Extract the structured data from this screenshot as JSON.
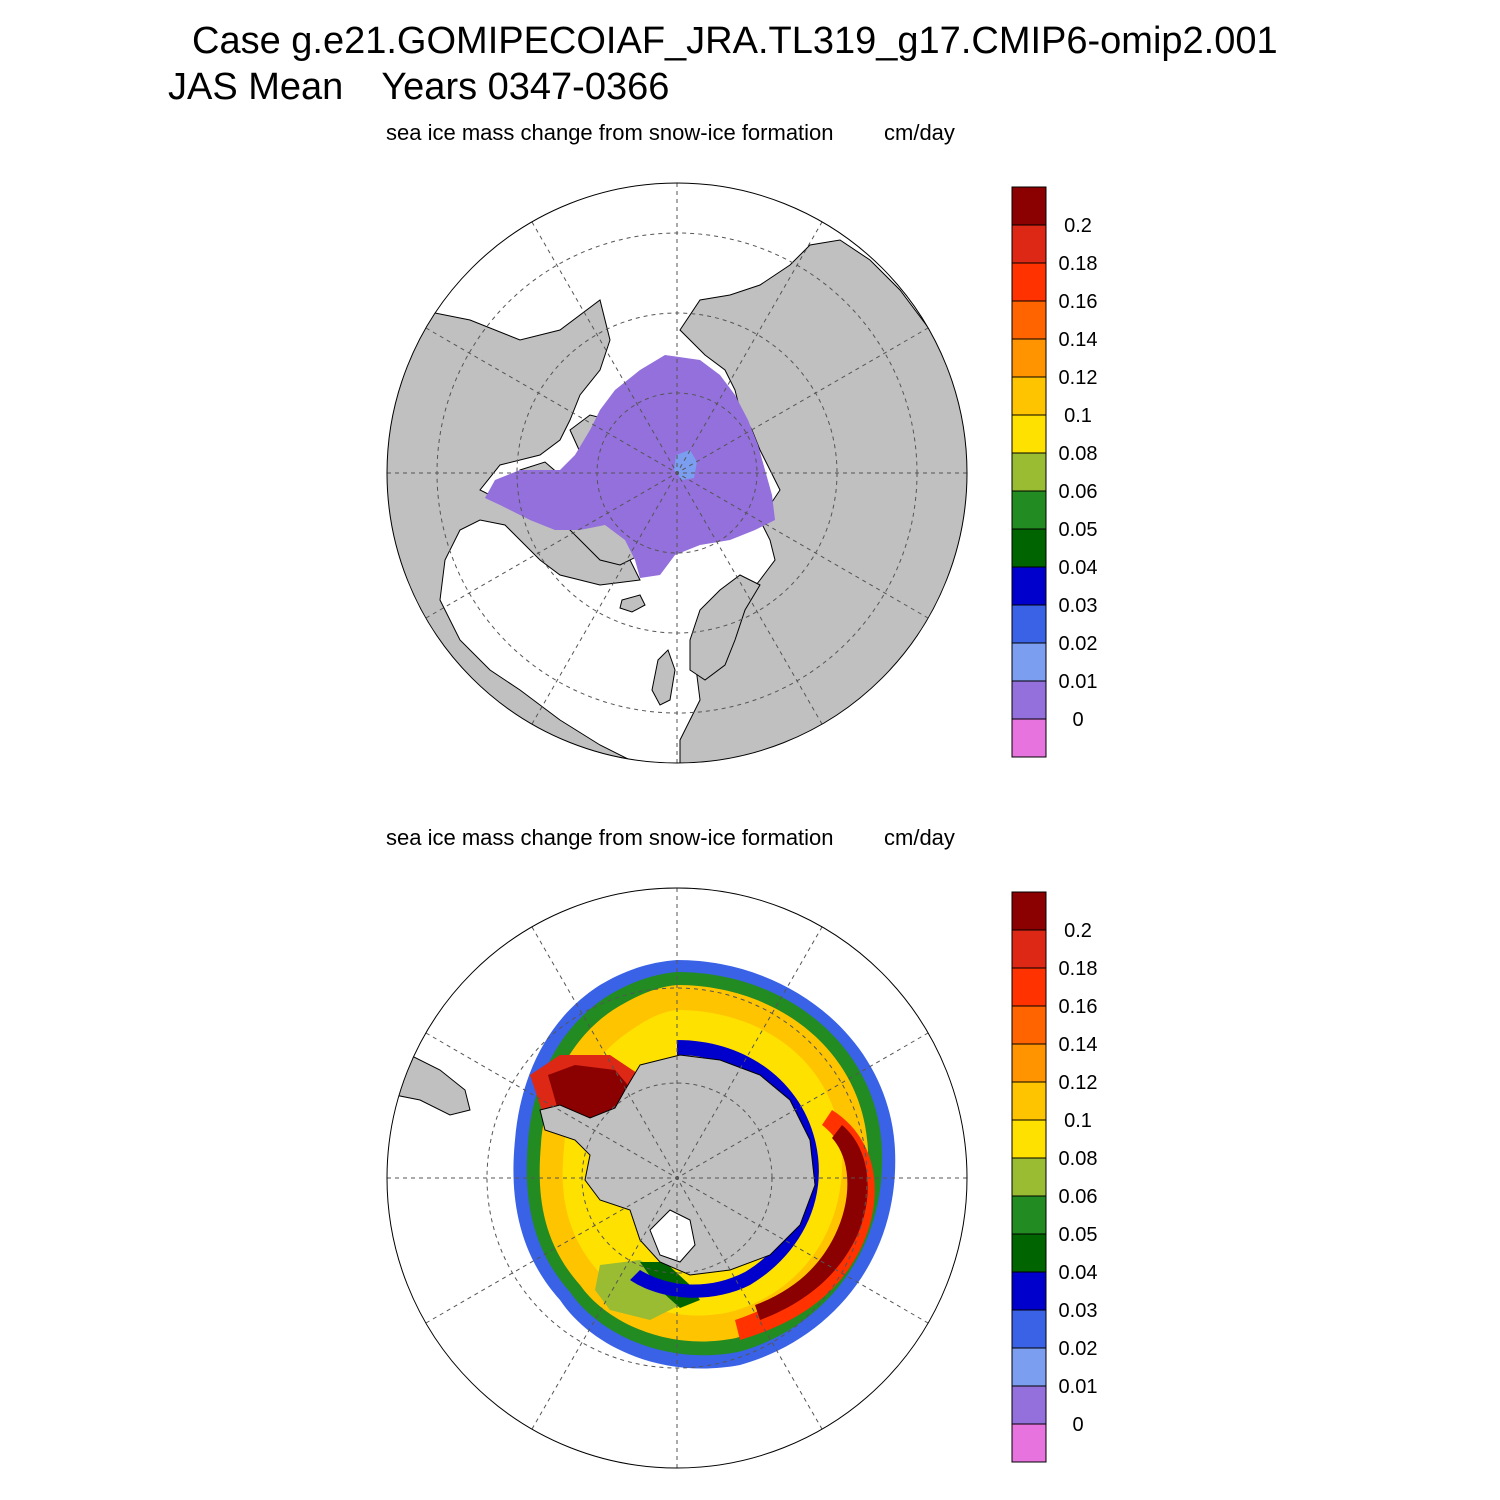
{
  "header": {
    "case_title": "Case g.e21.GOMIPECOIAF_JRA.TL319_g17.CMIP6-omip2.001",
    "season": "JAS Mean",
    "years": "Years 0347-0366"
  },
  "panels": [
    {
      "hemisphere": "north",
      "variable": "sea ice mass change from snow-ice formation",
      "units": "cm/day"
    },
    {
      "hemisphere": "south",
      "variable": "sea ice mass change from snow-ice formation",
      "units": "cm/day"
    }
  ],
  "colorbar": {
    "labels": [
      "0",
      "0.01",
      "0.02",
      "0.03",
      "0.04",
      "0.05",
      "0.06",
      "0.08",
      "0.1",
      "0.12",
      "0.14",
      "0.16",
      "0.18",
      "0.2"
    ],
    "colors": [
      "#e673de",
      "#9370db",
      "#7b9ef0",
      "#3a62e6",
      "#0000cd",
      "#006400",
      "#228b22",
      "#9abc32",
      "#ffe100",
      "#ffc400",
      "#ff9400",
      "#ff6400",
      "#ff3200",
      "#dc2814",
      "#8b0000"
    ]
  },
  "colors": {
    "land": "#c0c0c0",
    "ocean": "#ffffff"
  }
}
